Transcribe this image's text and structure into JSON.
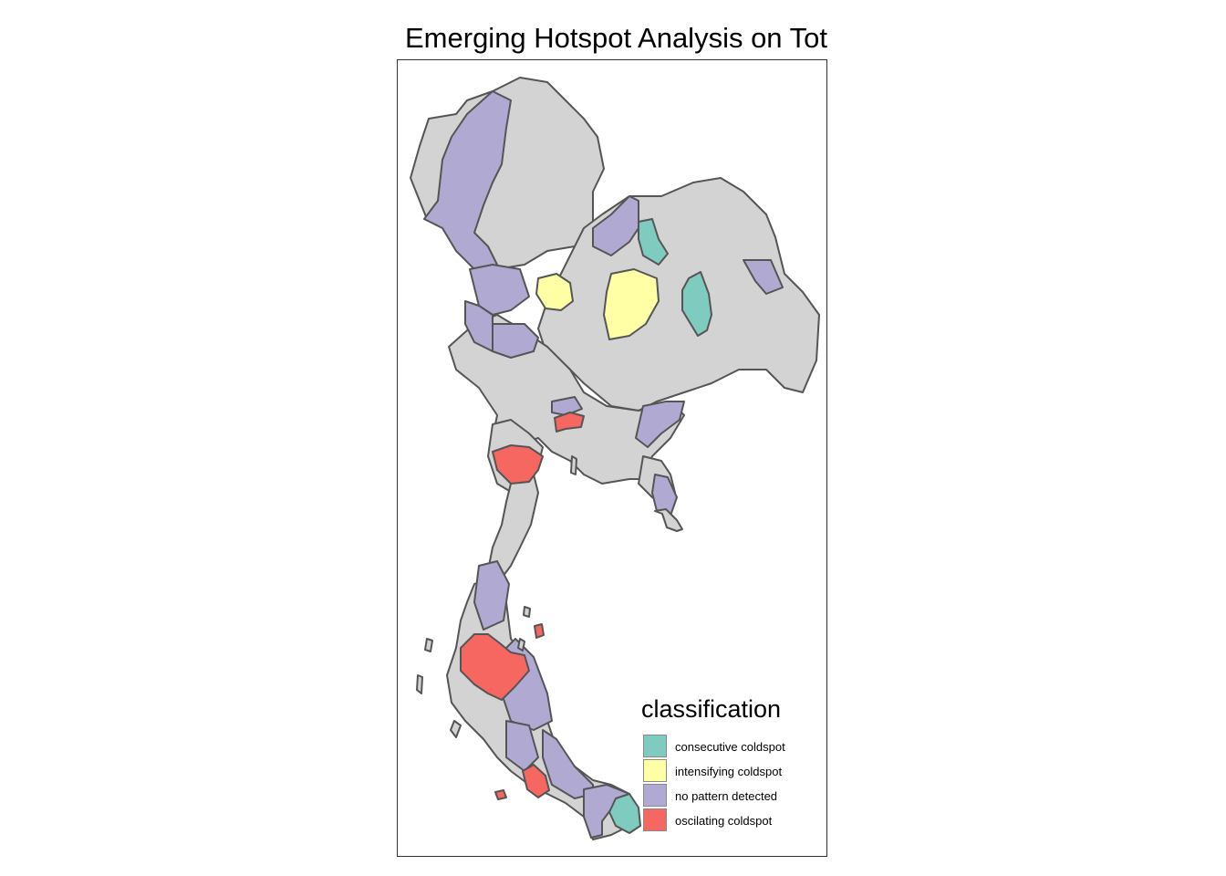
{
  "title": "Emerging Hotspot Analysis on Total Cases",
  "legend": {
    "title": "classification",
    "items": [
      {
        "label": "consecutive coldspot",
        "color": "#7FCBBF"
      },
      {
        "label": "intensifying coldspot",
        "color": "#FFFFA6"
      },
      {
        "label": "no pattern detected",
        "color": "#B0AAD2"
      },
      {
        "label": "oscilating coldspot",
        "color": "#F56760"
      }
    ]
  },
  "colors": {
    "base": "#D3D3D3",
    "border": "#555555"
  }
}
